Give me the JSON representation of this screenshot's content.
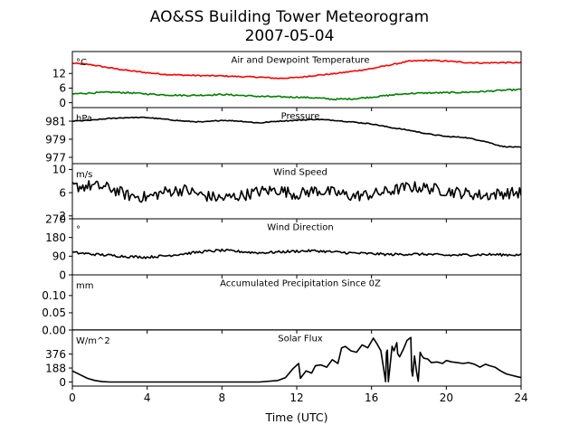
{
  "header": {
    "title": "AO&SS Building Tower Meteorogram",
    "date": "2007-05-04"
  },
  "x_axis": {
    "label": "Time (UTC)",
    "ticks": [
      0,
      4,
      8,
      12,
      16,
      20,
      24
    ],
    "lim": [
      0,
      24
    ]
  },
  "chart_data": [
    {
      "type": "line",
      "title": "Air and Dewpoint Temperature",
      "unit": "°C",
      "ylim": [
        -2,
        21
      ],
      "yticks": [
        0,
        6,
        12
      ],
      "series": [
        {
          "color": "#ff0000",
          "x": [
            0,
            1,
            2,
            3,
            4,
            5,
            6,
            7,
            8,
            9,
            10,
            11,
            12,
            13,
            14,
            15,
            16,
            17,
            18,
            19,
            20,
            21,
            22,
            23,
            24
          ],
          "values": [
            16.2,
            15.6,
            14.3,
            13.2,
            12.3,
            11.6,
            11.3,
            11.1,
            11.0,
            10.7,
            10.5,
            10.0,
            10.3,
            11.2,
            11.9,
            12.9,
            14.0,
            15.5,
            17.0,
            17.4,
            17.1,
            16.5,
            16.3,
            16.5,
            16.4
          ]
        },
        {
          "color": "#008000",
          "x": [
            0,
            1,
            2,
            3,
            4,
            5,
            6,
            7,
            8,
            9,
            10,
            11,
            12,
            13,
            14,
            15,
            16,
            17,
            18,
            19,
            20,
            21,
            22,
            23,
            24
          ],
          "values": [
            3.6,
            4.0,
            4.3,
            4.1,
            3.6,
            3.2,
            3.0,
            3.1,
            3.4,
            3.0,
            2.6,
            2.4,
            2.3,
            2.0,
            1.4,
            1.6,
            2.3,
            3.1,
            3.8,
            4.0,
            4.1,
            4.3,
            4.6,
            5.1,
            5.4
          ]
        }
      ]
    },
    {
      "type": "line",
      "title": "Pressure",
      "unit": "hPa",
      "ylim": [
        976.3,
        982.5
      ],
      "yticks": [
        977,
        979,
        981
      ],
      "series": [
        {
          "color": "#000000",
          "x": [
            0,
            1,
            2,
            3,
            4,
            5,
            6,
            7,
            8,
            9,
            10,
            11,
            12,
            13,
            14,
            15,
            16,
            17,
            18,
            19,
            20,
            21,
            22,
            23,
            24
          ],
          "values": [
            981.0,
            981.1,
            981.3,
            981.4,
            981.4,
            981.2,
            981.0,
            980.9,
            981.1,
            981.0,
            980.8,
            981.0,
            981.1,
            981.2,
            981.1,
            980.9,
            980.7,
            980.3,
            980.0,
            979.6,
            979.3,
            979.2,
            978.8,
            978.2,
            978.1
          ]
        }
      ]
    },
    {
      "type": "line",
      "title": "Wind Speed",
      "unit": "m/s",
      "ylim": [
        1.5,
        11
      ],
      "yticks": [
        2,
        6,
        10
      ],
      "series": [
        {
          "color": "#000000",
          "x": [
            0,
            1,
            2,
            3,
            4,
            5,
            6,
            7,
            8,
            9,
            10,
            11,
            12,
            13,
            14,
            15,
            16,
            17,
            18,
            19,
            20,
            21,
            22,
            23,
            24
          ],
          "values": [
            7.0,
            7.2,
            6.8,
            5.5,
            5.2,
            6.2,
            6.5,
            5.5,
            5.0,
            5.5,
            6.2,
            6.5,
            5.7,
            6.4,
            6.0,
            5.4,
            5.7,
            6.3,
            7.0,
            6.8,
            6.3,
            5.9,
            5.5,
            5.9,
            6.0
          ]
        }
      ]
    },
    {
      "type": "line",
      "title": "Wind Direction",
      "unit": "°",
      "ylim": [
        0,
        270
      ],
      "yticks": [
        0,
        90,
        180,
        270
      ],
      "series": [
        {
          "color": "#000000",
          "x": [
            0,
            1,
            2,
            3,
            4,
            5,
            6,
            7,
            8,
            9,
            10,
            11,
            12,
            13,
            14,
            15,
            16,
            17,
            18,
            19,
            20,
            21,
            22,
            23,
            24
          ],
          "values": [
            108,
            100,
            94,
            88,
            85,
            92,
            102,
            112,
            118,
            112,
            106,
            110,
            114,
            116,
            110,
            105,
            102,
            98,
            100,
            99,
            94,
            96,
            98,
            97,
            96
          ]
        }
      ]
    },
    {
      "type": "line",
      "title": "Accumulated Precipitation Since 0Z",
      "unit": "mm",
      "ylim": [
        0,
        0.16
      ],
      "yticks": [
        0.0,
        0.05,
        0.1
      ],
      "ytick_labels": [
        "0.00",
        "0.05",
        "0.10"
      ],
      "series": [
        {
          "color": "#000000",
          "x": [
            0,
            24
          ],
          "values": [
            0,
            0
          ]
        }
      ]
    },
    {
      "type": "line",
      "title": "Solar Flux",
      "unit": "W/m^2",
      "ylim": [
        -55,
        700
      ],
      "yticks": [
        0,
        188,
        376
      ],
      "series": [
        {
          "color": "#000000",
          "x": [
            0,
            0.4,
            0.8,
            1.2,
            1.6,
            2,
            4,
            6,
            8,
            10,
            11,
            11.4,
            11.8,
            12.1,
            12.2,
            12.5,
            12.8,
            13.0,
            13.3,
            13.6,
            13.9,
            14.2,
            14.4,
            14.6,
            14.9,
            15.2,
            15.5,
            15.8,
            16.1,
            16.3,
            16.5,
            16.7,
            16.75,
            16.8,
            16.85,
            16.9,
            17.1,
            17.2,
            17.35,
            17.4,
            17.5,
            17.7,
            17.9,
            18.1,
            18.15,
            18.2,
            18.3,
            18.4,
            18.5,
            18.6,
            18.7,
            18.8,
            19.0,
            19.2,
            19.5,
            19.8,
            20.0,
            20.3,
            20.6,
            20.9,
            21.2,
            21.5,
            21.8,
            22.1,
            22.3,
            22.6,
            22.9,
            23.2,
            23.5,
            23.8,
            24
          ],
          "values": [
            150,
            100,
            50,
            20,
            5,
            0,
            0,
            0,
            0,
            0,
            20,
            60,
            180,
            250,
            50,
            150,
            120,
            220,
            230,
            200,
            300,
            250,
            460,
            480,
            420,
            400,
            500,
            460,
            590,
            510,
            420,
            100,
            5,
            400,
            430,
            5,
            480,
            420,
            530,
            380,
            340,
            440,
            560,
            600,
            150,
            80,
            350,
            150,
            10,
            400,
            350,
            320,
            310,
            260,
            270,
            250,
            290,
            270,
            260,
            250,
            260,
            240,
            200,
            240,
            220,
            200,
            150,
            110,
            90,
            70,
            60
          ]
        }
      ]
    }
  ]
}
